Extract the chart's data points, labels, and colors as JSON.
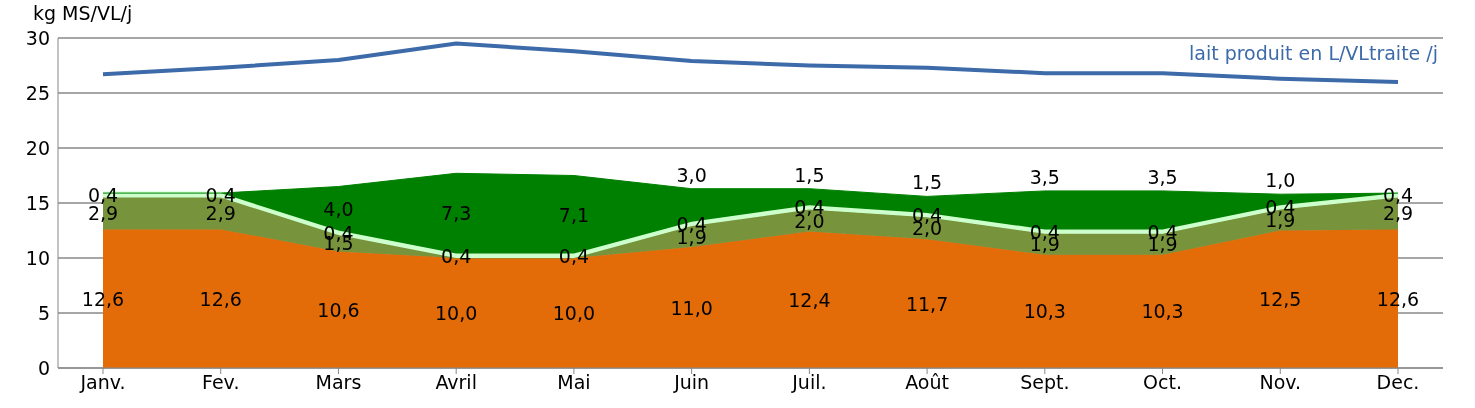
{
  "chart_data": {
    "type": "area",
    "ylabel": "kg MS/VL/j",
    "categories": [
      "Janv.",
      "Fev.",
      "Mars",
      "Avril",
      "Mai",
      "Juin",
      "Juil.",
      "Août",
      "Sept.",
      "Oct.",
      "Nov.",
      "Dec."
    ],
    "stacked": true,
    "ylim": [
      0,
      30
    ],
    "yticks": [
      0,
      5,
      10,
      15,
      20,
      25,
      30
    ],
    "grid": "y",
    "legend": false,
    "series": [
      {
        "color": "#e36c09",
        "values": [
          12.6,
          12.6,
          10.6,
          10.0,
          10.0,
          11.0,
          12.4,
          11.7,
          10.3,
          10.3,
          12.5,
          12.6
        ],
        "value_labels": [
          "12,6",
          "12,6",
          "10,6",
          "10,0",
          "10,0",
          "11,0",
          "12,4",
          "11,7",
          "10,3",
          "10,3",
          "12,5",
          "12,6"
        ]
      },
      {
        "color": "#77933c",
        "values": [
          2.9,
          2.9,
          1.5,
          0,
          0,
          1.9,
          2.0,
          2.0,
          1.9,
          1.9,
          1.9,
          2.9
        ],
        "value_labels": [
          "2,9",
          "2,9",
          "1,5",
          null,
          null,
          "1,9",
          "2,0",
          "2,0",
          "1,9",
          "1,9",
          "1,9",
          "2,9"
        ]
      },
      {
        "color": "#ccffcc",
        "values": [
          0.4,
          0.4,
          0.4,
          0.4,
          0.4,
          0.4,
          0.4,
          0.4,
          0.4,
          0.4,
          0.4,
          0.4
        ],
        "value_labels": [
          "0,4",
          "0,4",
          "0,4",
          "0,4",
          "0,4",
          "0,4",
          "0,4",
          "0,4",
          "0,4",
          "0,4",
          "0,4",
          "0,4"
        ]
      },
      {
        "color": "#008000",
        "values": [
          0,
          0,
          4.0,
          7.3,
          7.1,
          3.0,
          1.5,
          1.5,
          3.5,
          3.5,
          1.0,
          0
        ],
        "value_labels": [
          null,
          null,
          "4,0",
          "7,3",
          "7,1",
          "3,0",
          "1,5",
          "1,5",
          "3,5",
          "3,5",
          "1,0",
          null
        ]
      },
      {
        "type": "line",
        "name": "lait produit en L/VLtraite /j",
        "color": "#3d6aa8",
        "values": [
          26.7,
          27.3,
          28.0,
          29.5,
          28.8,
          27.9,
          27.5,
          27.3,
          26.8,
          26.8,
          26.3,
          26.0
        ]
      }
    ]
  }
}
